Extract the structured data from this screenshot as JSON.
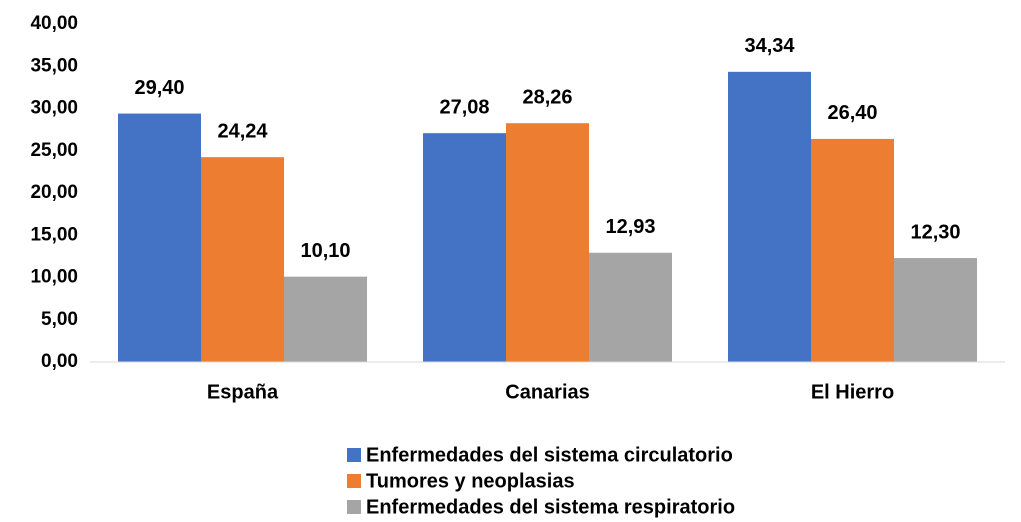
{
  "chart_data": {
    "type": "bar",
    "categories": [
      "España",
      "Canarias",
      "El Hierro"
    ],
    "series": [
      {
        "name": "Enfermedades del sistema circulatorio",
        "color": "#4472c4",
        "values": [
          29.4,
          27.08,
          34.34
        ],
        "value_labels": [
          "29,40",
          "27,08",
          "34,34"
        ]
      },
      {
        "name": "Tumores y neoplasias",
        "color": "#ed7d31",
        "values": [
          24.24,
          28.26,
          26.4
        ],
        "value_labels": [
          "24,24",
          "28,26",
          "26,40"
        ]
      },
      {
        "name": "Enfermedades del sistema respiratorio",
        "color": "#a5a5a5",
        "values": [
          10.1,
          12.93,
          12.3
        ],
        "value_labels": [
          "10,10",
          "12,93",
          "12,30"
        ]
      }
    ],
    "ylim": [
      0,
      40
    ],
    "yticks": [
      {
        "value": 0,
        "label": "0,00"
      },
      {
        "value": 5,
        "label": "5,00"
      },
      {
        "value": 10,
        "label": "10,00"
      },
      {
        "value": 15,
        "label": "15,00"
      },
      {
        "value": 20,
        "label": "20,00"
      },
      {
        "value": 25,
        "label": "25,00"
      },
      {
        "value": 30,
        "label": "30,00"
      },
      {
        "value": 35,
        "label": "35,00"
      },
      {
        "value": 40,
        "label": "40,00"
      }
    ],
    "grid": false,
    "legend": "bottom"
  }
}
